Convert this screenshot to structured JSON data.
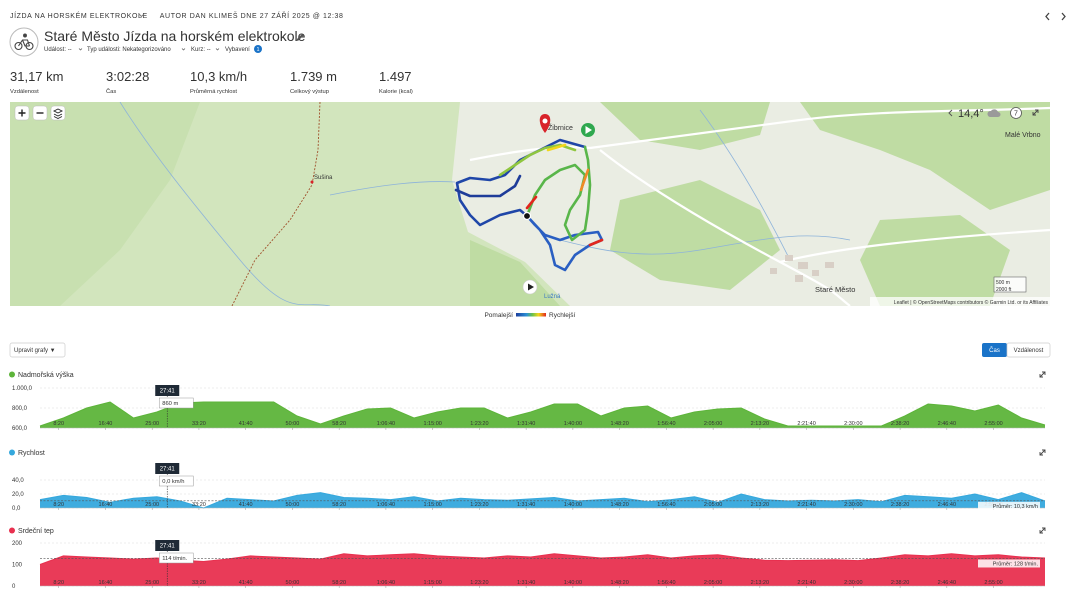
{
  "header": {
    "breadcrumb": {
      "activity_type": "JÍZDA NA HORSKÉM ELEKTROKOLE",
      "author_prefix": "AUTOR",
      "author": "DAN KLIMEŠ",
      "date_prefix": "DNE",
      "date": "27 ZÁŘÍ 2025 @ 12:38"
    },
    "title": "Staré Město Jízda na horském elektrokole",
    "meta": [
      {
        "label": "Událost:",
        "value": "--"
      },
      {
        "label": "Typ události:",
        "value": "Nekategorizováno"
      },
      {
        "label": "Kurz:",
        "value": "--"
      }
    ],
    "equipment": "Vybavení",
    "equipment_count": "1"
  },
  "stats": [
    {
      "value": "31,17 km",
      "label": "Vzdálenost"
    },
    {
      "value": "3:02:28",
      "label": "Čas"
    },
    {
      "value": "10,3 km/h",
      "label": "Průměrná rychlost"
    },
    {
      "value": "1.739 m",
      "label": "Celkový výstup"
    },
    {
      "value": "1.497",
      "label": "Kalorie (kcal)"
    }
  ],
  "map": {
    "weather": "14,4°",
    "weather_badge": "7",
    "places": {
      "vrbno": "Malé Vrbno",
      "susina": "Sušina",
      "stare_mesto": "Staré Město",
      "luzna": "Lužná",
      "zibrnice": "Žibrnice"
    },
    "scale": {
      "metric": "500 m",
      "imperial": "2000 ft"
    },
    "attribution": "Leaflet | © OpenStreetMaps contributors © Garmin Ltd. or its Affiliates",
    "legend": {
      "slow": "Pomalejší",
      "fast": "Rychlejší"
    }
  },
  "controls": {
    "edit_charts": "Upravit grafy ▼",
    "mode_time": "Čas",
    "mode_distance": "Vzdálenost"
  },
  "chart_data": [
    {
      "type": "area",
      "title": "Nadmořská výška",
      "color": "#5db43a",
      "x": [
        300,
        550,
        800,
        1050,
        1300,
        1550,
        1800,
        2050,
        2300,
        2550,
        2800,
        3050,
        3300,
        3550,
        3800,
        4050,
        4300,
        4550,
        4800,
        5050,
        5300,
        5550,
        5800,
        6050,
        6300,
        6550,
        6800,
        7050,
        7300,
        7550,
        7800,
        8050,
        8300,
        8550,
        8800,
        9050,
        9300,
        9550,
        9800,
        10050,
        10300,
        10550,
        10800,
        11050
      ],
      "values": [
        620,
        700,
        800,
        860,
        700,
        760,
        850,
        860,
        860,
        860,
        860,
        720,
        640,
        720,
        790,
        800,
        700,
        760,
        800,
        800,
        700,
        760,
        840,
        840,
        720,
        800,
        820,
        700,
        760,
        790,
        800,
        690,
        620,
        620,
        620,
        620,
        620,
        720,
        840,
        820,
        770,
        830,
        700,
        630
      ],
      "xlim": [
        300,
        11050
      ],
      "xticks": [
        {
          "value": 500,
          "label": "8:20"
        },
        {
          "value": 1000,
          "label": "16:40"
        },
        {
          "value": 1500,
          "label": "25:00"
        },
        {
          "value": 2000,
          "label": "33:20"
        },
        {
          "value": 2500,
          "label": "41:40"
        },
        {
          "value": 3000,
          "label": "50:00"
        },
        {
          "value": 3500,
          "label": "58:20"
        },
        {
          "value": 4000,
          "label": "1:06:40"
        },
        {
          "value": 4500,
          "label": "1:15:00"
        },
        {
          "value": 5000,
          "label": "1:23:20"
        },
        {
          "value": 5500,
          "label": "1:31:40"
        },
        {
          "value": 6000,
          "label": "1:40:00"
        },
        {
          "value": 6500,
          "label": "1:48:20"
        },
        {
          "value": 7000,
          "label": "1:56:40"
        },
        {
          "value": 7500,
          "label": "2:05:00"
        },
        {
          "value": 8000,
          "label": "2:13:20"
        },
        {
          "value": 8500,
          "label": "2:21:40"
        },
        {
          "value": 9000,
          "label": "2:30:00"
        },
        {
          "value": 9500,
          "label": "2:38:20"
        },
        {
          "value": 10000,
          "label": "2:46:40"
        },
        {
          "value": 10500,
          "label": "2:55:00"
        }
      ],
      "ylim": [
        600,
        1000
      ],
      "yticks": [
        {
          "value": 600,
          "label": "600,0"
        },
        {
          "value": 800,
          "label": "800,0"
        },
        {
          "value": 1000,
          "label": "1.000,0"
        }
      ],
      "cursor": {
        "value": 1661,
        "label": "27:41"
      },
      "cursor_value": {
        "value": 860,
        "label": "860 m"
      }
    },
    {
      "type": "area",
      "title": "Rychlost",
      "color": "#35a8dd",
      "x": [
        300,
        550,
        800,
        1050,
        1300,
        1550,
        1800,
        2050,
        2300,
        2550,
        2800,
        3050,
        3300,
        3550,
        3800,
        4050,
        4300,
        4550,
        4800,
        5050,
        5300,
        5550,
        5800,
        6050,
        6300,
        6550,
        6800,
        7050,
        7300,
        7550,
        7800,
        8050,
        8300,
        8550,
        8800,
        9050,
        9300,
        9550,
        9800,
        10050,
        10300,
        10550,
        10800,
        11050
      ],
      "values": [
        12,
        18,
        15,
        8,
        14,
        16,
        10,
        0,
        14,
        12,
        10,
        18,
        22,
        15,
        14,
        12,
        16,
        10,
        14,
        12,
        11,
        13,
        15,
        10,
        12,
        14,
        9,
        12,
        16,
        8,
        20,
        12,
        10,
        11,
        10,
        12,
        9,
        18,
        16,
        14,
        20,
        12,
        22,
        10
      ],
      "xlim": [
        300,
        11050
      ],
      "xticks": [
        {
          "value": 500,
          "label": "8:20"
        },
        {
          "value": 1000,
          "label": "16:40"
        },
        {
          "value": 1500,
          "label": "25:00"
        },
        {
          "value": 2000,
          "label": "33:20"
        },
        {
          "value": 2500,
          "label": "41:40"
        },
        {
          "value": 3000,
          "label": "50:00"
        },
        {
          "value": 3500,
          "label": "58:20"
        },
        {
          "value": 4000,
          "label": "1:06:40"
        },
        {
          "value": 4500,
          "label": "1:15:00"
        },
        {
          "value": 5000,
          "label": "1:23:20"
        },
        {
          "value": 5500,
          "label": "1:31:40"
        },
        {
          "value": 6000,
          "label": "1:40:00"
        },
        {
          "value": 6500,
          "label": "1:48:20"
        },
        {
          "value": 7000,
          "label": "1:56:40"
        },
        {
          "value": 7500,
          "label": "2:05:00"
        },
        {
          "value": 8000,
          "label": "2:13:20"
        },
        {
          "value": 8500,
          "label": "2:21:40"
        },
        {
          "value": 9000,
          "label": "2:30:00"
        },
        {
          "value": 9500,
          "label": "2:38:20"
        },
        {
          "value": 10000,
          "label": "2:46:40"
        },
        {
          "value": 10500,
          "label": "2:55:00"
        }
      ],
      "ylim": [
        0,
        60
      ],
      "yticks": [
        {
          "value": 0,
          "label": "0,0"
        },
        {
          "value": 20,
          "label": "20,0"
        },
        {
          "value": 40,
          "label": "40,0"
        }
      ],
      "cursor": {
        "value": 1661,
        "label": "27:41"
      },
      "cursor_value": {
        "value": 0,
        "label": "0,0 km/h"
      },
      "average": {
        "value": 10.3,
        "label": "Průměr: 10,3 km/h"
      }
    },
    {
      "type": "area",
      "title": "Srdeční tep",
      "color": "#e8304f",
      "x": [
        300,
        550,
        800,
        1050,
        1300,
        1550,
        1800,
        2050,
        2300,
        2550,
        2800,
        3050,
        3300,
        3550,
        3800,
        4050,
        4300,
        4550,
        4800,
        5050,
        5300,
        5550,
        5800,
        6050,
        6300,
        6550,
        6800,
        7050,
        7300,
        7550,
        7800,
        8050,
        8300,
        8550,
        8800,
        9050,
        9300,
        9550,
        9800,
        10050,
        10300,
        10550,
        10800,
        11050
      ],
      "values": [
        100,
        140,
        135,
        130,
        125,
        130,
        120,
        114,
        125,
        140,
        135,
        130,
        125,
        150,
        140,
        145,
        150,
        140,
        135,
        130,
        140,
        135,
        150,
        140,
        130,
        135,
        145,
        130,
        140,
        145,
        130,
        120,
        118,
        120,
        122,
        118,
        130,
        145,
        140,
        150,
        140,
        145,
        135,
        130
      ],
      "xlim": [
        300,
        11050
      ],
      "xticks": [
        {
          "value": 500,
          "label": "8:20"
        },
        {
          "value": 1000,
          "label": "16:40"
        },
        {
          "value": 1500,
          "label": "25:00"
        },
        {
          "value": 2000,
          "label": "33:20"
        },
        {
          "value": 2500,
          "label": "41:40"
        },
        {
          "value": 3000,
          "label": "50:00"
        },
        {
          "value": 3500,
          "label": "58:20"
        },
        {
          "value": 4000,
          "label": "1:06:40"
        },
        {
          "value": 4500,
          "label": "1:15:00"
        },
        {
          "value": 5000,
          "label": "1:23:20"
        },
        {
          "value": 5500,
          "label": "1:31:40"
        },
        {
          "value": 6000,
          "label": "1:40:00"
        },
        {
          "value": 6500,
          "label": "1:48:20"
        },
        {
          "value": 7000,
          "label": "1:56:40"
        },
        {
          "value": 7500,
          "label": "2:05:00"
        },
        {
          "value": 8000,
          "label": "2:13:20"
        },
        {
          "value": 8500,
          "label": "2:21:40"
        },
        {
          "value": 9000,
          "label": "2:30:00"
        },
        {
          "value": 9500,
          "label": "2:38:20"
        },
        {
          "value": 10000,
          "label": "2:46:40"
        },
        {
          "value": 10500,
          "label": "2:55:00"
        }
      ],
      "ylim": [
        0,
        200
      ],
      "yticks": [
        0,
        100,
        200
      ],
      "cursor": {
        "value": 1661,
        "label": "27:41"
      },
      "cursor_value": {
        "value": 114,
        "label": "114 t/min."
      },
      "average": {
        "value": 128,
        "label": "Průměr: 128 t/min."
      }
    }
  ]
}
